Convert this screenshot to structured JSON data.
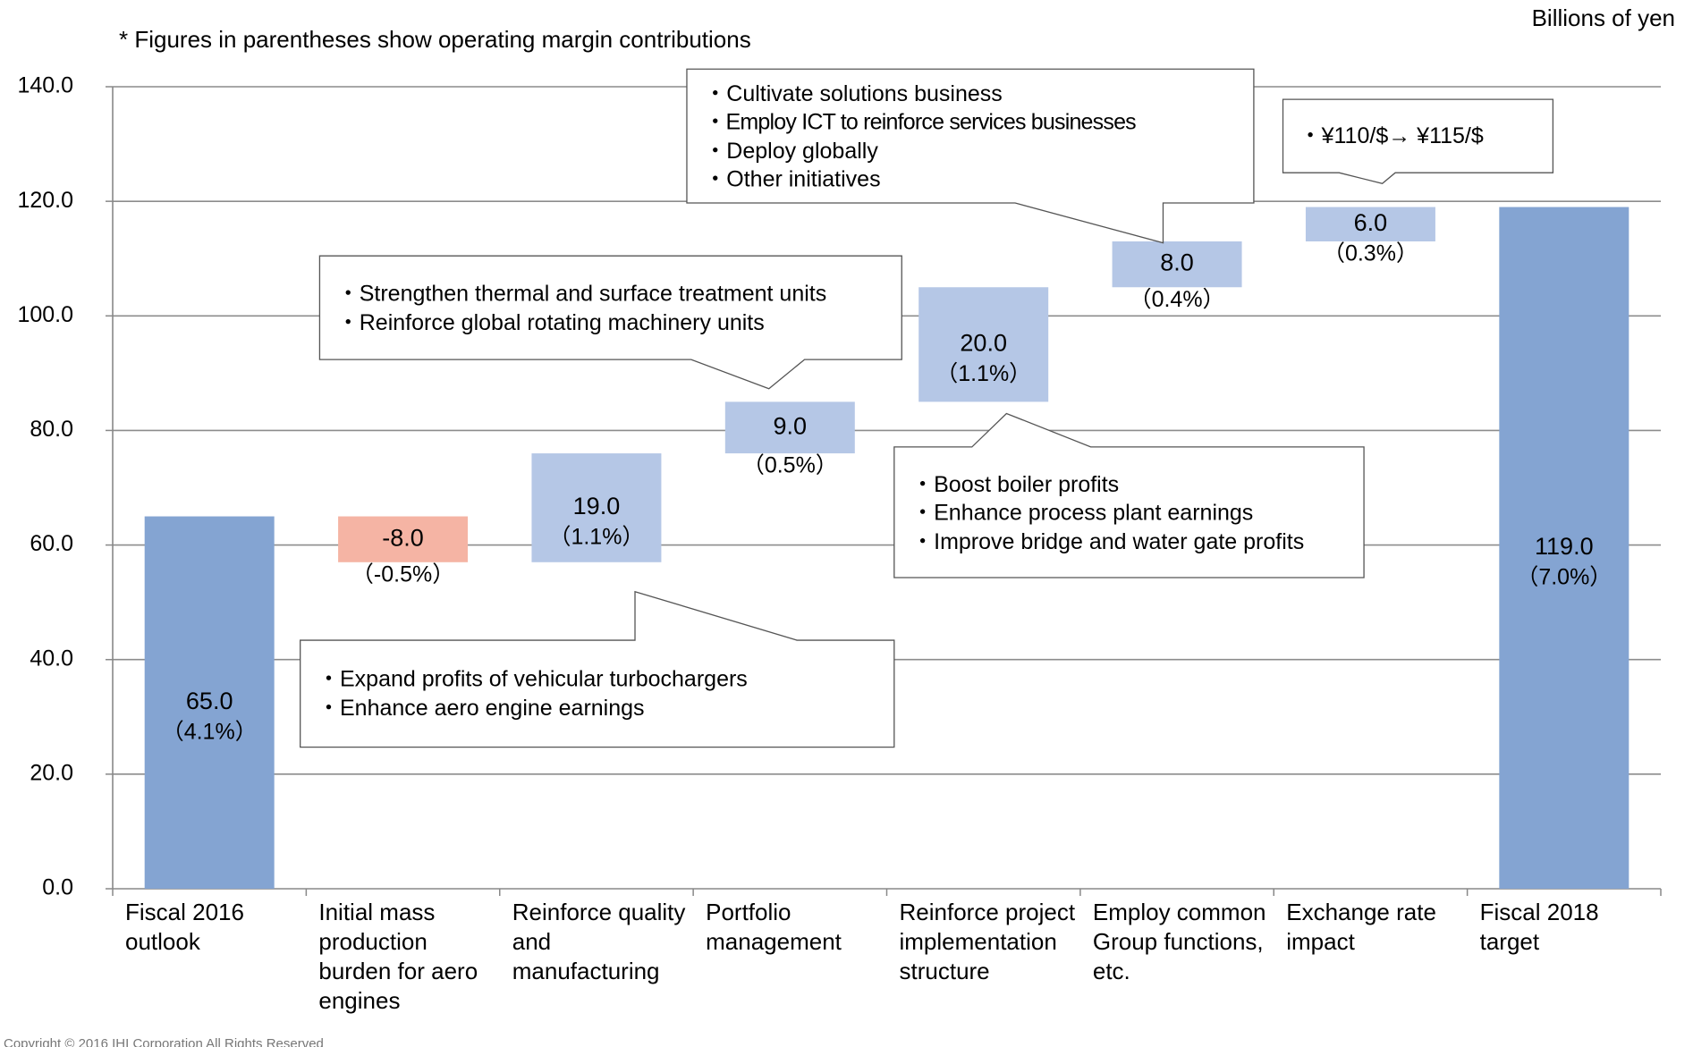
{
  "chart_data": {
    "type": "waterfall",
    "note": "* Figures in parentheses show operating margin contributions",
    "unit": "Billions of yen",
    "categories": [
      "Fiscal 2016 outlook",
      "Initial mass production burden for aero engines",
      "Reinforce quality and manufacturing",
      "Portfolio management",
      "Reinforce project implementation structure",
      "Employ common Group functions, etc.",
      "Exchange rate impact",
      "Fiscal 2018 target"
    ],
    "measure": [
      "total",
      "relative",
      "relative",
      "relative",
      "relative",
      "relative",
      "relative",
      "total"
    ],
    "values": [
      65,
      -8,
      19,
      9,
      20,
      8,
      6,
      119
    ],
    "value_labels": [
      "65.0",
      "-8.0",
      "19.0",
      "9.0",
      "20.0",
      "8.0",
      "6.0",
      "119.0"
    ],
    "margin_labels": [
      "（4.1%）",
      "（-0.5%）",
      "（1.1%）",
      "（0.5%）",
      "（1.1%）",
      "（0.4%）",
      "（0.3%）",
      "（7.0%）"
    ],
    "colors": {
      "total": "#84a4d2",
      "positive": "#b5c7e6",
      "negative": "#f5b4a4"
    },
    "ylim": [
      0,
      140
    ],
    "yticks": [
      {
        "value": 0,
        "label": "0.0"
      },
      {
        "value": 20,
        "label": "20.0"
      },
      {
        "value": 40,
        "label": "40.0"
      },
      {
        "value": 60,
        "label": "60.0"
      },
      {
        "value": 80,
        "label": "80.0"
      },
      {
        "value": 100,
        "label": "100.0"
      },
      {
        "value": 120,
        "label": "120.0"
      },
      {
        "value": 140,
        "label": "140.0"
      }
    ],
    "grid": true,
    "callouts": [
      {
        "lines": [
          "・Cultivate solutions business",
          "・Employ ICT to reinforce services businesses",
          "・Deploy globally",
          "・Other initiatives"
        ]
      },
      {
        "lines": [
          "・¥110/$→ ¥115/$"
        ]
      },
      {
        "lines": [
          "・Strengthen thermal and surface treatment units",
          "・Reinforce global rotating machinery units"
        ]
      },
      {
        "lines": [
          "・Boost boiler profits",
          "・Enhance process plant earnings",
          "・Improve bridge and water gate profits"
        ]
      },
      {
        "lines": [
          "・Expand profits of vehicular turbochargers",
          "・Enhance aero engine earnings"
        ]
      }
    ],
    "copyright": "Copyright © 2016 IHI Corporation All Rights Reserved"
  }
}
